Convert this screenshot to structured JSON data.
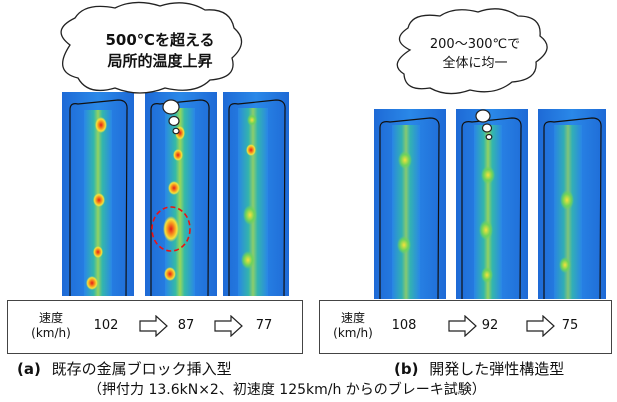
{
  "bubble_left": {
    "line1": "500℃を超える",
    "line2": "局所的温度上昇"
  },
  "bubble_right": {
    "line1": "200～300℃で",
    "line2": "全体に均一"
  },
  "panel_left": {
    "speed_label": "速度\n(km/h)",
    "speed_label_line1": "速度",
    "speed_label_line2": "(km/h)",
    "speeds": [
      "102",
      "87",
      "77"
    ]
  },
  "panel_right": {
    "speed_label_line1": "速度",
    "speed_label_line2": "(km/h)",
    "speeds": [
      "108",
      "92",
      "75"
    ]
  },
  "captions": {
    "a_marker": "(a)",
    "a_text": "既存の金属ブロック挿入型",
    "b_marker": "(b)",
    "b_text": "開発した弾性構造型",
    "conditions": "（押付力 13.6kN×2、初速度 125km/h からのブレーキ試験）"
  },
  "colors": {
    "field_blue": "#1f6fd6",
    "hot_red": "#e21c1c",
    "mid_yellow": "#f6e23a",
    "green": "#3fbf5c"
  }
}
